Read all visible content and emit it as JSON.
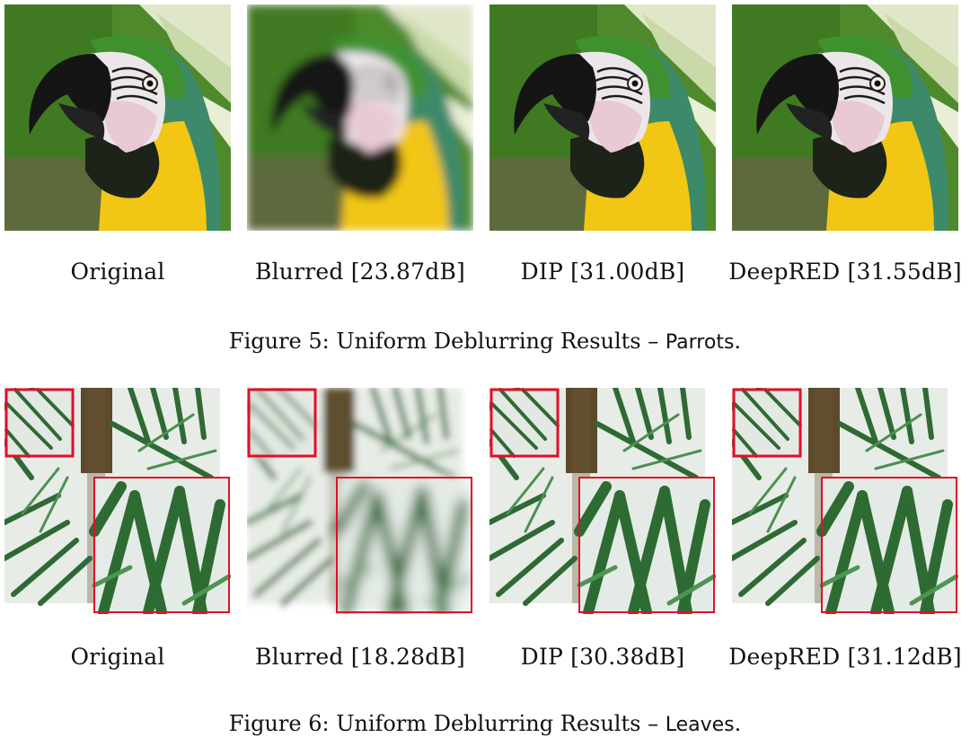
{
  "figures": [
    {
      "caption": {
        "prefix": "Figure 5:",
        "text": "Uniform Deblurring Results –",
        "image_name": "Parrots",
        "suffix": "."
      },
      "panels": [
        {
          "label": "Original"
        },
        {
          "label": "Blurred [23.87dB]"
        },
        {
          "label": "DIP [31.00dB]"
        },
        {
          "label": "DeepRED [31.55dB]"
        }
      ]
    },
    {
      "caption": {
        "prefix": "Figure 6:",
        "text": "Uniform Deblurring Results –",
        "image_name": "Leaves",
        "suffix": "."
      },
      "panels": [
        {
          "label": "Original"
        },
        {
          "label": "Blurred [18.28dB]"
        },
        {
          "label": "DIP [30.38dB]"
        },
        {
          "label": "DeepRED [31.12dB]"
        }
      ]
    }
  ],
  "colors": {
    "zoom_box": "#e0102a",
    "parrot_green": "#3f7d23",
    "parrot_yellow": "#f2c615",
    "leaf_green": "#2f6a35"
  }
}
